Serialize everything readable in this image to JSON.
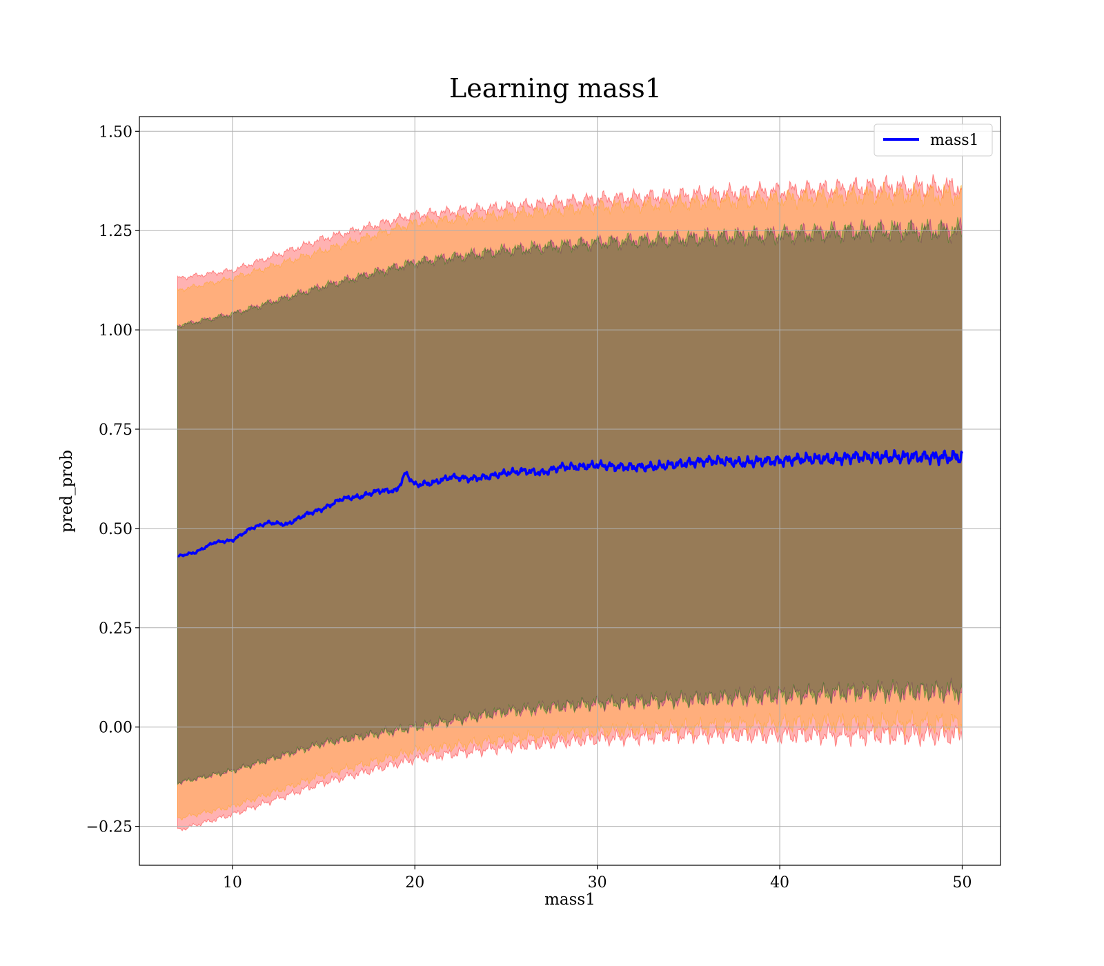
{
  "chart_data": {
    "type": "line",
    "title": "Learning mass1",
    "xlabel": "mass1",
    "ylabel": "pred_prob",
    "xlim": [
      4.9,
      52.1
    ],
    "ylim": [
      -0.348,
      1.537
    ],
    "xticks": [
      10,
      20,
      30,
      40,
      50
    ],
    "xtick_labels": [
      "10",
      "20",
      "30",
      "40",
      "50"
    ],
    "yticks": [
      -0.25,
      0.0,
      0.25,
      0.5,
      0.75,
      1.0,
      1.25,
      1.5
    ],
    "ytick_labels": [
      "−0.25",
      "0.00",
      "0.25",
      "0.50",
      "0.75",
      "1.00",
      "1.25",
      "1.50"
    ],
    "grid": true,
    "legend": {
      "position": "top-right",
      "entries": [
        "mass1"
      ]
    },
    "series": [
      {
        "name": "mass1",
        "color": "#0000ff",
        "x": [
          7,
          8,
          9,
          10,
          11,
          12,
          13,
          14,
          15,
          16,
          17,
          18,
          19,
          19.5,
          20,
          21,
          22,
          23,
          24,
          25,
          26,
          27,
          28,
          29,
          30,
          31,
          32,
          33,
          34,
          35,
          36,
          37,
          38,
          39,
          40,
          41,
          42,
          43,
          44,
          45,
          46,
          47,
          48,
          49,
          50
        ],
        "values": [
          0.43,
          0.44,
          0.465,
          0.47,
          0.5,
          0.515,
          0.51,
          0.535,
          0.55,
          0.575,
          0.58,
          0.595,
          0.595,
          0.64,
          0.61,
          0.615,
          0.63,
          0.625,
          0.63,
          0.64,
          0.645,
          0.64,
          0.655,
          0.655,
          0.66,
          0.655,
          0.655,
          0.655,
          0.66,
          0.665,
          0.67,
          0.67,
          0.665,
          0.67,
          0.67,
          0.675,
          0.675,
          0.675,
          0.68,
          0.68,
          0.68,
          0.68,
          0.68,
          0.68,
          0.68
        ]
      }
    ],
    "bands": [
      {
        "color": "#ff0000",
        "opacity": 0.3,
        "x": [
          7,
          10,
          15,
          20,
          25,
          30,
          35,
          40,
          45,
          50
        ],
        "lower": [
          -0.26,
          -0.22,
          -0.14,
          -0.08,
          -0.05,
          -0.03,
          -0.02,
          -0.02,
          -0.02,
          -0.02
        ],
        "upper": [
          1.13,
          1.15,
          1.23,
          1.29,
          1.31,
          1.33,
          1.34,
          1.35,
          1.36,
          1.36
        ]
      },
      {
        "color": "#ffa500",
        "opacity": 0.3,
        "x": [
          7,
          10,
          15,
          20,
          25,
          30,
          35,
          40,
          45,
          50
        ],
        "lower": [
          -0.23,
          -0.2,
          -0.12,
          -0.06,
          -0.03,
          -0.01,
          0.0,
          0.01,
          0.01,
          0.01
        ],
        "upper": [
          1.1,
          1.13,
          1.2,
          1.27,
          1.29,
          1.31,
          1.32,
          1.33,
          1.34,
          1.34
        ]
      },
      {
        "color": "#800080",
        "opacity": 0.3,
        "x": [
          7,
          10,
          15,
          20,
          25,
          30,
          35,
          40,
          45,
          50
        ],
        "lower": [
          -0.14,
          -0.11,
          -0.04,
          0.0,
          0.04,
          0.06,
          0.07,
          0.08,
          0.09,
          0.09
        ],
        "upper": [
          1.01,
          1.04,
          1.11,
          1.17,
          1.2,
          1.22,
          1.23,
          1.24,
          1.25,
          1.25
        ]
      },
      {
        "color": "#008000",
        "opacity": 0.3,
        "x": [
          7,
          10,
          15,
          20,
          25,
          30,
          35,
          40,
          45,
          50
        ],
        "lower": [
          -0.14,
          -0.11,
          -0.04,
          0.0,
          0.04,
          0.06,
          0.07,
          0.08,
          0.09,
          0.09
        ],
        "upper": [
          1.01,
          1.04,
          1.11,
          1.17,
          1.2,
          1.22,
          1.23,
          1.24,
          1.25,
          1.25
        ]
      }
    ]
  }
}
